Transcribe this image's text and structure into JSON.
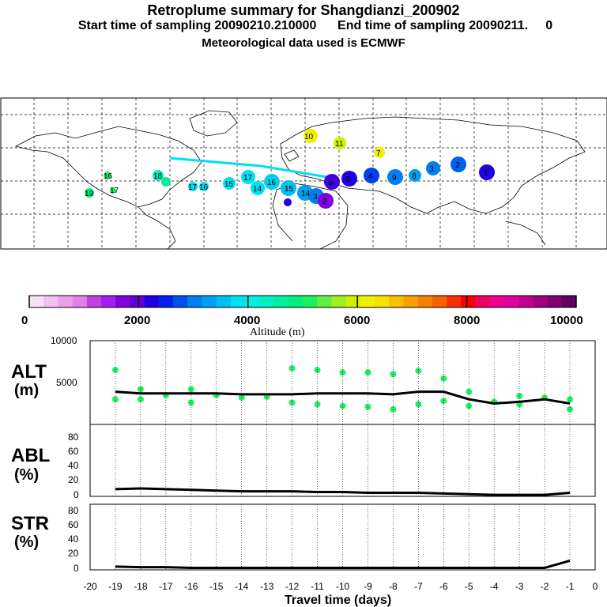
{
  "header": {
    "title": "Retroplume summary for Shangdianzi_200902",
    "subtitle": "Start time of sampling 20090210.210000      End time of sampling 20090211.     0",
    "met": "Meteorological data used is ECMWF"
  },
  "colorbar": {
    "label": "Altitude (m)",
    "ticks": [
      "0",
      "2000",
      "4000",
      "6000",
      "8000",
      "10000"
    ],
    "colors": [
      "#f8e0f8",
      "#f0c0f0",
      "#e8a0e8",
      "#e080e8",
      "#c040e0",
      "#a020f0",
      "#8000e0",
      "#6000d8",
      "#2000e0",
      "#0020f0",
      "#0050f0",
      "#0080f0",
      "#00a0f0",
      "#00c0f0",
      "#00e0f0",
      "#00f0e0",
      "#00f0c0",
      "#00f0a0",
      "#00f080",
      "#20f060",
      "#60f040",
      "#a0f020",
      "#d0f000",
      "#f0f000",
      "#f8e000",
      "#f8c000",
      "#f8a000",
      "#f88000",
      "#f86000",
      "#f83000",
      "#f80000",
      "#f00060",
      "#f00090",
      "#e000a0",
      "#c00090",
      "#a00080",
      "#800070",
      "#600060"
    ]
  },
  "map": {
    "trajectory_labels": [
      "1",
      "2",
      "3",
      "4",
      "5",
      "6",
      "7",
      "8",
      "9",
      "10",
      "11",
      "12",
      "13",
      "14",
      "15",
      "16",
      "17",
      "18",
      "19"
    ]
  },
  "panels": {
    "alt": {
      "label1": "ALT",
      "label2": "(m)",
      "ticks": [
        "10000",
        "5000"
      ]
    },
    "abl": {
      "label1": "ABL",
      "label2": "(%)",
      "ticks": [
        "80",
        "60",
        "40",
        "20",
        "0"
      ]
    },
    "str": {
      "label1": "STR",
      "label2": "(%)",
      "ticks": [
        "80",
        "60",
        "40",
        "20",
        "0"
      ]
    }
  },
  "xaxis": {
    "label": "Travel time (days)",
    "ticks": [
      "-20",
      "-19",
      "-18",
      "-17",
      "-16",
      "-15",
      "-14",
      "-13",
      "-12",
      "-11",
      "-10",
      "-9",
      "-8",
      "-7",
      "-6",
      "-5",
      "-4",
      "-3",
      "-2",
      "-1",
      "0"
    ]
  },
  "chart_data": [
    {
      "type": "line",
      "title": "ALT (m)",
      "xlabel": "Travel time (days)",
      "ylabel": "ALT (m)",
      "ylim": [
        0,
        10000
      ],
      "xlim": [
        -20,
        0
      ],
      "series": [
        {
          "name": "mean altitude",
          "x": [
            -19,
            -18,
            -17,
            -16,
            -15,
            -14,
            -13,
            -12,
            -11,
            -10,
            -9,
            -8,
            -7,
            -6,
            -5,
            -4,
            -3,
            -2,
            -1
          ],
          "values": [
            3900,
            3700,
            3700,
            3700,
            3700,
            3600,
            3600,
            3600,
            3700,
            3700,
            3700,
            3600,
            3900,
            3900,
            3000,
            2500,
            2700,
            3000,
            2500
          ]
        }
      ],
      "scatter": {
        "x": [
          -19,
          -19,
          -18,
          -18,
          -17,
          -16,
          -16,
          -15,
          -14,
          -13,
          -12,
          -12,
          -11,
          -11,
          -10,
          -10,
          -9,
          -9,
          -8,
          -8,
          -7,
          -7,
          -6,
          -6,
          -5,
          -5,
          -4,
          -3,
          -3,
          -2,
          -1,
          -1
        ],
        "values": [
          6500,
          3000,
          4200,
          3000,
          3500,
          4200,
          2600,
          3500,
          3200,
          3300,
          6700,
          2600,
          6500,
          2400,
          6200,
          2200,
          6200,
          2100,
          6000,
          1800,
          6400,
          2400,
          5500,
          2800,
          3900,
          2200,
          2700,
          3400,
          2400,
          3200,
          3000,
          1800
        ]
      }
    },
    {
      "type": "line",
      "title": "ABL (%)",
      "ylabel": "ABL (%)",
      "ylim": [
        0,
        100
      ],
      "xlim": [
        -20,
        0
      ],
      "series": [
        {
          "name": "ABL fraction",
          "x": [
            -19,
            -18,
            -17,
            -16,
            -15,
            -14,
            -13,
            -12,
            -11,
            -10,
            -9,
            -8,
            -7,
            -6,
            -5,
            -4,
            -3,
            -2,
            -1
          ],
          "values": [
            10,
            11,
            10,
            9,
            8,
            7,
            7,
            7,
            6,
            6,
            5,
            5,
            5,
            4,
            3,
            2,
            2,
            2,
            5
          ]
        }
      ]
    },
    {
      "type": "line",
      "title": "STR (%)",
      "ylabel": "STR (%)",
      "ylim": [
        0,
        100
      ],
      "xlim": [
        -20,
        0
      ],
      "series": [
        {
          "name": "STR fraction",
          "x": [
            -19,
            -18,
            -17,
            -16,
            -15,
            -14,
            -13,
            -12,
            -11,
            -10,
            -9,
            -8,
            -7,
            -6,
            -5,
            -4,
            -3,
            -2,
            -1
          ],
          "values": [
            5,
            4,
            4,
            3,
            3,
            3,
            3,
            3,
            3,
            3,
            3,
            3,
            3,
            3,
            3,
            3,
            3,
            3,
            14
          ]
        }
      ]
    }
  ]
}
